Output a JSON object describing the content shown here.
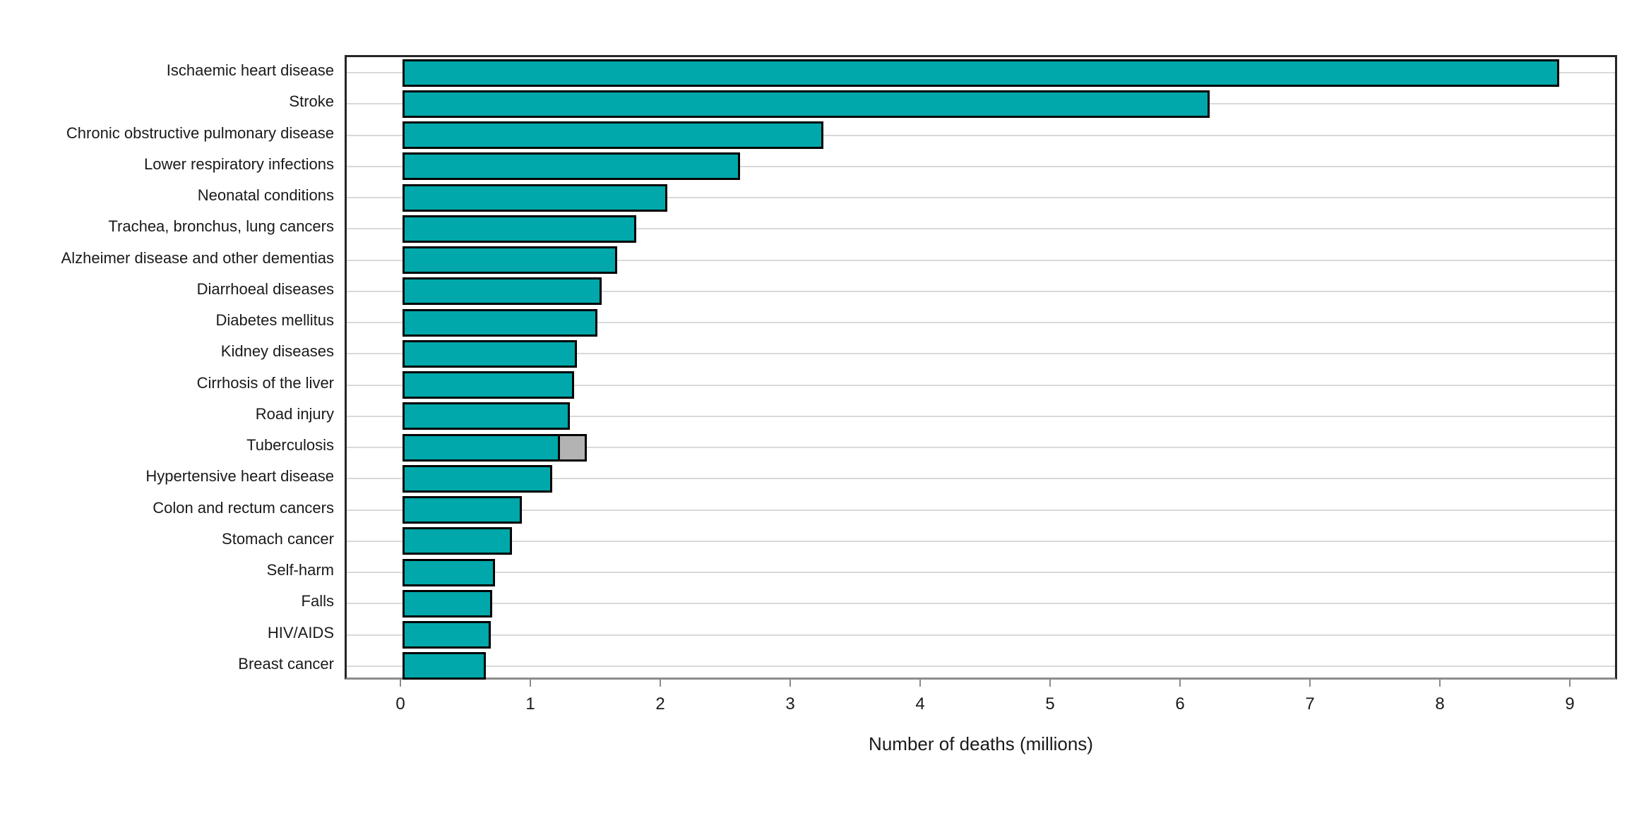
{
  "figure": {
    "background": "#ffffff"
  },
  "chart_data": {
    "type": "bar",
    "orientation": "horizontal",
    "title": "",
    "xlabel": "Number of deaths (millions)",
    "ylabel": "",
    "legend": "none",
    "grid": "horizontal category gridlines only",
    "xlim": [
      -0.45,
      9.37
    ],
    "x_ticks": [
      0,
      1,
      2,
      3,
      4,
      5,
      6,
      7,
      8,
      9
    ],
    "categories": [
      "Ischaemic heart disease",
      "Stroke",
      "Chronic obstructive pulmonary disease",
      "Lower respiratory infections",
      "Neonatal conditions",
      "Trachea, bronchus, lung cancers",
      "Alzheimer disease and other dementias",
      "Diarrhoeal diseases",
      "Diabetes mellitus",
      "Kidney diseases",
      "Cirrhosis of the liver",
      "Road injury",
      "Tuberculosis",
      "Hypertensive heart disease",
      "Colon and rectum cancers",
      "Stomach cancer",
      "Self-harm",
      "Falls",
      "HIV/AIDS",
      "Breast cancer"
    ],
    "series": [
      {
        "name": "deaths-main",
        "color": "#00a8ab",
        "values": [
          8.9,
          6.21,
          3.24,
          2.6,
          2.04,
          1.8,
          1.65,
          1.53,
          1.5,
          1.34,
          1.32,
          1.29,
          1.21,
          1.15,
          0.92,
          0.84,
          0.71,
          0.69,
          0.68,
          0.64
        ]
      },
      {
        "name": "deaths-secondary-segment",
        "color": "#b3b3b3",
        "values": [
          0,
          0,
          0,
          0,
          0,
          0,
          0,
          0,
          0,
          0,
          0,
          0,
          0.21,
          0,
          0,
          0,
          0,
          0,
          0,
          0
        ]
      }
    ],
    "colors": {
      "bar_fill": "#00a8ab",
      "bar_secondary_fill": "#b3b3b3",
      "bar_outline": "#000000",
      "gridline": "#d9d9d9",
      "panel_border": "#262626",
      "axis_line": "#8c8c8c",
      "text": "#1a1a1a"
    }
  }
}
